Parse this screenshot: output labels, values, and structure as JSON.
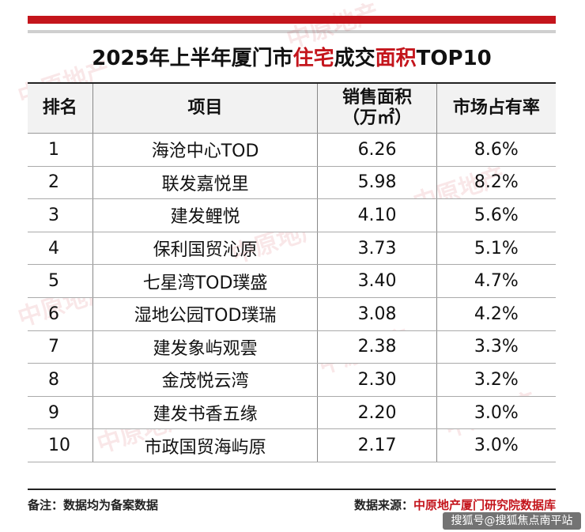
{
  "title": {
    "part1": "2025年上半年厦门市",
    "part2": "住宅",
    "part3": "成交",
    "part4": "面积",
    "part5": "TOP10"
  },
  "headers": {
    "rank": "排名",
    "project": "项目",
    "area_line1": "销售面积",
    "area_line2": "（万㎡）",
    "share": "市场占有率"
  },
  "rows": [
    {
      "rank": "1",
      "project": "海沧中心TOD",
      "area": "6.26",
      "share": "8.6%"
    },
    {
      "rank": "2",
      "project": "联发嘉悦里",
      "area": "5.98",
      "share": "8.2%"
    },
    {
      "rank": "3",
      "project": "建发鲤悦",
      "area": "4.10",
      "share": "5.6%"
    },
    {
      "rank": "4",
      "project": "保利国贸沁原",
      "area": "3.73",
      "share": "5.1%"
    },
    {
      "rank": "5",
      "project": "七星湾TOD璞盛",
      "area": "3.40",
      "share": "4.7%"
    },
    {
      "rank": "6",
      "project": "湿地公园TOD璞瑞",
      "area": "3.08",
      "share": "4.2%"
    },
    {
      "rank": "7",
      "project": "建发象屿观雲",
      "area": "2.38",
      "share": "3.3%"
    },
    {
      "rank": "8",
      "project": "金茂悦云湾",
      "area": "2.30",
      "share": "3.2%"
    },
    {
      "rank": "9",
      "project": "建发书香五缘",
      "area": "2.20",
      "share": "3.0%"
    },
    {
      "rank": "10",
      "project": "市政国贸海屿原",
      "area": "2.17",
      "share": "3.0%"
    }
  ],
  "footer": {
    "note": "备注：数据均为备案数据",
    "source_label": "数据来源：",
    "source_value": "中原地产厦门研究院数据库"
  },
  "watermark": {
    "text": "搜狐号@搜狐焦点南平站",
    "logo_text": "中原地产"
  },
  "colors": {
    "accent": "#c4151c"
  }
}
